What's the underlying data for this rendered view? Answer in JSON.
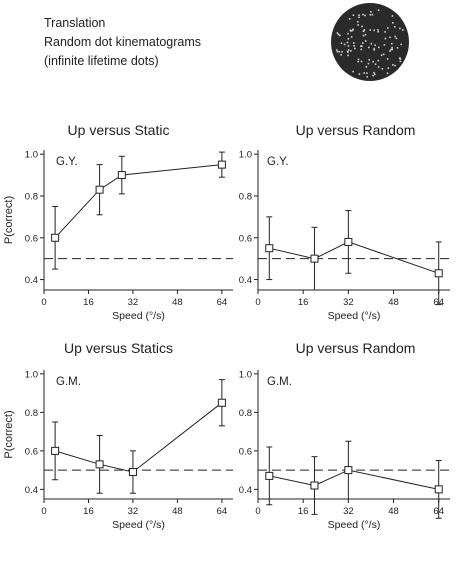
{
  "header": {
    "line1": "Translation",
    "line2": "Random dot kinematograms",
    "line3": "(infinite lifetime dots)"
  },
  "chart_data": [
    {
      "type": "line",
      "title": "Up versus Static",
      "subject": "G.Y.",
      "xlabel": "Speed (°/s)",
      "ylabel": "P(correct)",
      "x": [
        4,
        20,
        28,
        64
      ],
      "y": [
        0.6,
        0.83,
        0.9,
        0.95
      ],
      "err": [
        0.15,
        0.12,
        0.09,
        0.06
      ],
      "xlim": [
        0,
        68
      ],
      "ylim": [
        0.35,
        1.02
      ],
      "xticks": [
        0,
        16,
        32,
        48,
        64
      ],
      "yticks": [
        0.4,
        0.6,
        0.8,
        1.0
      ],
      "chance": 0.5
    },
    {
      "type": "line",
      "title": "Up versus Random",
      "subject": "G.Y.",
      "xlabel": "Speed (°/s)",
      "ylabel": "",
      "x": [
        4,
        20,
        32,
        64
      ],
      "y": [
        0.55,
        0.5,
        0.58,
        0.43
      ],
      "err": [
        0.15,
        0.15,
        0.15,
        0.15
      ],
      "xlim": [
        0,
        68
      ],
      "ylim": [
        0.35,
        1.02
      ],
      "xticks": [
        0,
        16,
        32,
        48,
        64
      ],
      "yticks": [
        0.4,
        0.6,
        0.8,
        1.0
      ],
      "chance": 0.5
    },
    {
      "type": "line",
      "title": "Up versus Statics",
      "subject": "G.M.",
      "xlabel": "Speed (°/s)",
      "ylabel": "P(correct)",
      "x": [
        4,
        20,
        32,
        64
      ],
      "y": [
        0.6,
        0.53,
        0.49,
        0.85
      ],
      "err": [
        0.15,
        0.15,
        0.11,
        0.12
      ],
      "xlim": [
        0,
        68
      ],
      "ylim": [
        0.35,
        1.02
      ],
      "xticks": [
        0,
        16,
        32,
        48,
        64
      ],
      "yticks": [
        0.4,
        0.6,
        0.8,
        1.0
      ],
      "chance": 0.5
    },
    {
      "type": "line",
      "title": "Up versus Random",
      "subject": "G.M.",
      "xlabel": "Speed (°/s)",
      "ylabel": "",
      "x": [
        4,
        20,
        32,
        64
      ],
      "y": [
        0.47,
        0.42,
        0.5,
        0.4
      ],
      "err": [
        0.15,
        0.15,
        0.15,
        0.15
      ],
      "xlim": [
        0,
        68
      ],
      "ylim": [
        0.35,
        1.02
      ],
      "xticks": [
        0,
        16,
        32,
        48,
        64
      ],
      "yticks": [
        0.4,
        0.6,
        0.8,
        1.0
      ],
      "chance": 0.5
    }
  ],
  "colors": {
    "ink": "#222222",
    "disc": "#2a2a2a",
    "dots": "#cfcfcf"
  }
}
